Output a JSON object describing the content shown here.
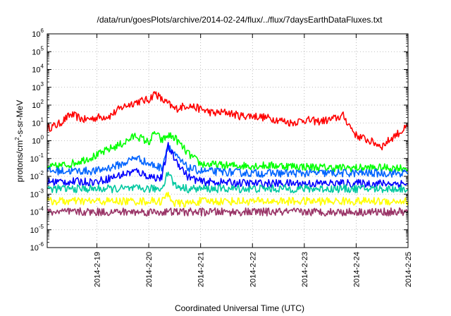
{
  "chart_data": {
    "type": "line",
    "title": "/data/run/goesPlots/archive/2014-02-24/flux/../flux/7daysEarthDataFluxes.txt",
    "xlabel": "Coordinated Universal Time (UTC)",
    "ylabel": "protons/cm2-s-sr-MeV",
    "ylabel_parts": {
      "base": "protons/cm",
      "sup": "2",
      "rest": "-s-sr-MeV"
    },
    "y_scale": "log",
    "ylim": [
      1e-06,
      1000000.0
    ],
    "y_ticks": [
      {
        "base": "10",
        "exp": "-6",
        "value": 1e-06
      },
      {
        "base": "10",
        "exp": "-5",
        "value": 1e-05
      },
      {
        "base": "10",
        "exp": "-4",
        "value": 0.0001
      },
      {
        "base": "10",
        "exp": "-3",
        "value": 0.001
      },
      {
        "base": "10",
        "exp": "-2",
        "value": 0.01
      },
      {
        "base": "10",
        "exp": "-1",
        "value": 0.1
      },
      {
        "base": "10",
        "exp": "0",
        "value": 1
      },
      {
        "base": "10",
        "exp": "1",
        "value": 10
      },
      {
        "base": "10",
        "exp": "2",
        "value": 100
      },
      {
        "base": "10",
        "exp": "3",
        "value": 1000
      },
      {
        "base": "10",
        "exp": "4",
        "value": 10000
      },
      {
        "base": "10",
        "exp": "5",
        "value": 100000
      },
      {
        "base": "10",
        "exp": "6",
        "value": 1000000
      }
    ],
    "x_ticks": [
      "2014-2-19",
      "2014-2-20",
      "2014-2-21",
      "2014-2-22",
      "2014-2-23",
      "2014-2-24",
      "2014-2-25"
    ],
    "xlim": [
      "2014-02-18T01:00",
      "2014-02-25T00:00"
    ],
    "grid": true,
    "series": [
      {
        "color": "#ff0000",
        "x": [
          "2014-02-18T01:00",
          "2014-02-18T06:00",
          "2014-02-18T12:00",
          "2014-02-18T18:00",
          "2014-02-19T00:00",
          "2014-02-19T06:00",
          "2014-02-19T12:00",
          "2014-02-19T18:00",
          "2014-02-20T00:00",
          "2014-02-20T03:00",
          "2014-02-20T06:00",
          "2014-02-20T09:00",
          "2014-02-20T12:00",
          "2014-02-20T18:00",
          "2014-02-21T00:00",
          "2014-02-21T06:00",
          "2014-02-21T12:00",
          "2014-02-21T18:00",
          "2014-02-22T00:00",
          "2014-02-22T06:00",
          "2014-02-22T12:00",
          "2014-02-22T18:00",
          "2014-02-23T00:00",
          "2014-02-23T06:00",
          "2014-02-23T12:00",
          "2014-02-23T18:00",
          "2014-02-24T00:00",
          "2014-02-24T06:00",
          "2014-02-24T12:00",
          "2014-02-24T18:00",
          "2014-02-25T00:00"
        ],
        "values": [
          5,
          8,
          30,
          15,
          20,
          25,
          80,
          150,
          200,
          500,
          200,
          120,
          60,
          100,
          60,
          35,
          40,
          25,
          25,
          20,
          15,
          10,
          15,
          12,
          15,
          25,
          2,
          1,
          0.5,
          2,
          6
        ]
      },
      {
        "color": "#00ff00",
        "x": [
          "2014-02-18T01:00",
          "2014-02-18T12:00",
          "2014-02-19T00:00",
          "2014-02-19T06:00",
          "2014-02-19T12:00",
          "2014-02-19T18:00",
          "2014-02-20T00:00",
          "2014-02-20T03:00",
          "2014-02-20T06:00",
          "2014-02-20T09:00",
          "2014-02-20T12:00",
          "2014-02-20T18:00",
          "2014-02-21T00:00",
          "2014-02-21T12:00",
          "2014-02-22T00:00",
          "2014-02-22T12:00",
          "2014-02-23T00:00",
          "2014-02-23T12:00",
          "2014-02-24T00:00",
          "2014-02-24T12:00",
          "2014-02-25T00:00"
        ],
        "values": [
          0.03,
          0.05,
          0.15,
          0.35,
          0.7,
          2,
          0.8,
          3,
          1,
          2,
          1.5,
          0.2,
          0.05,
          0.04,
          0.04,
          0.04,
          0.035,
          0.03,
          0.03,
          0.03,
          0.03
        ]
      },
      {
        "color": "#0064ff",
        "x": [
          "2014-02-18T01:00",
          "2014-02-19T00:00",
          "2014-02-19T12:00",
          "2014-02-19T18:00",
          "2014-02-20T00:00",
          "2014-02-20T06:00",
          "2014-02-20T09:00",
          "2014-02-20T12:00",
          "2014-02-20T18:00",
          "2014-02-21T00:00",
          "2014-02-22T00:00",
          "2014-02-23T00:00",
          "2014-02-24T00:00",
          "2014-02-25T00:00"
        ],
        "values": [
          0.02,
          0.02,
          0.05,
          0.12,
          0.05,
          0.03,
          0.6,
          0.15,
          0.03,
          0.02,
          0.015,
          0.015,
          0.015,
          0.015
        ]
      },
      {
        "color": "#0000ff",
        "x": [
          "2014-02-18T01:00",
          "2014-02-19T00:00",
          "2014-02-19T18:00",
          "2014-02-20T00:00",
          "2014-02-20T06:00",
          "2014-02-20T09:00",
          "2014-02-20T12:00",
          "2014-02-20T18:00",
          "2014-02-21T00:00",
          "2014-02-22T00:00",
          "2014-02-23T00:00",
          "2014-02-24T00:00",
          "2014-02-25T00:00"
        ],
        "values": [
          0.005,
          0.005,
          0.02,
          0.01,
          0.008,
          0.5,
          0.1,
          0.01,
          0.005,
          0.004,
          0.004,
          0.004,
          0.004
        ]
      },
      {
        "color": "#00c8a0",
        "x": [
          "2014-02-18T01:00",
          "2014-02-19T00:00",
          "2014-02-20T00:00",
          "2014-02-20T06:00",
          "2014-02-20T09:00",
          "2014-02-20T12:00",
          "2014-02-20T18:00",
          "2014-02-21T00:00",
          "2014-02-22T00:00",
          "2014-02-23T00:00",
          "2014-02-24T00:00",
          "2014-02-25T00:00"
        ],
        "values": [
          0.002,
          0.002,
          0.002,
          0.002,
          0.02,
          0.003,
          0.002,
          0.002,
          0.002,
          0.002,
          0.002,
          0.002
        ]
      },
      {
        "color": "#ffff00",
        "x": [
          "2014-02-18T01:00",
          "2014-02-19T00:00",
          "2014-02-20T00:00",
          "2014-02-20T06:00",
          "2014-02-20T09:00",
          "2014-02-20T12:00",
          "2014-02-20T18:00",
          "2014-02-21T00:00",
          "2014-02-22T00:00",
          "2014-02-23T00:00",
          "2014-02-24T00:00",
          "2014-02-25T00:00"
        ],
        "values": [
          0.0004,
          0.0004,
          0.0004,
          0.0004,
          0.001,
          0.0003,
          0.0003,
          0.0004,
          0.0004,
          0.0004,
          0.0004,
          0.0004
        ]
      },
      {
        "color": "#993366",
        "x": [
          "2014-02-18T01:00",
          "2014-02-19T00:00",
          "2014-02-20T00:00",
          "2014-02-21T00:00",
          "2014-02-22T00:00",
          "2014-02-23T00:00",
          "2014-02-24T00:00",
          "2014-02-25T00:00"
        ],
        "values": [
          0.0001,
          0.0001,
          0.0001,
          0.0001,
          0.0001,
          0.0001,
          0.0001,
          0.0001
        ]
      }
    ]
  }
}
